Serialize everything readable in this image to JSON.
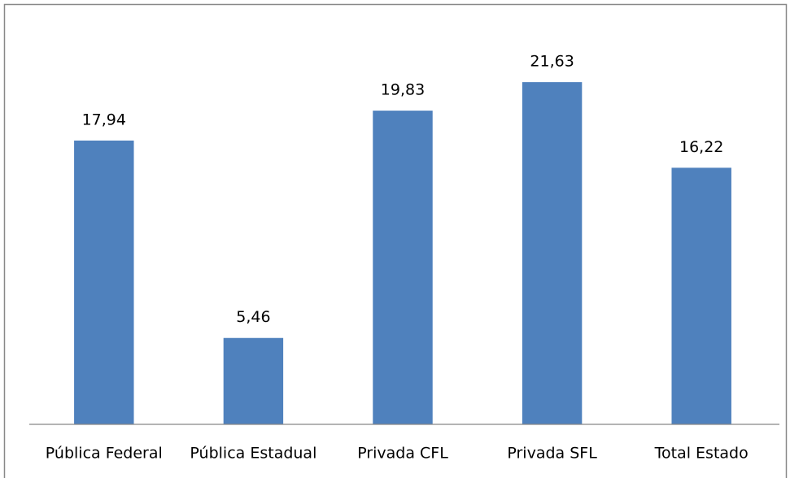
{
  "chart_data": {
    "type": "bar",
    "categories": [
      "Pública Federal",
      "Pública Estadual",
      "Privada CFL",
      "Privada SFL",
      "Total Estado"
    ],
    "values": [
      17.94,
      5.46,
      19.83,
      21.63,
      16.22
    ],
    "value_labels": [
      "17,94",
      "5,46",
      "19,83",
      "21,63",
      "16,22"
    ],
    "color": "#4f81bd",
    "ylim": [
      0,
      25
    ]
  }
}
